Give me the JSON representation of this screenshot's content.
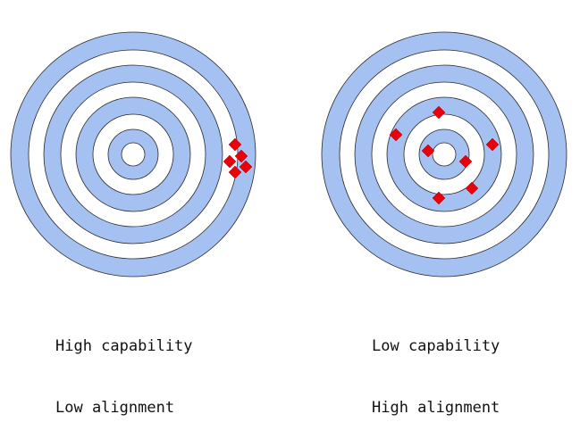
{
  "colors": {
    "ring_fill": "#a4c1f2",
    "ring_stroke": "#2b2b2b",
    "marker": "#e8000b",
    "background": "#ffffff"
  },
  "targets": [
    {
      "captions": [
        "High capability",
        "Low alignment"
      ],
      "marker_count": 5
    },
    {
      "captions": [
        "Low capability",
        "High alignment"
      ],
      "marker_count": 7
    }
  ]
}
